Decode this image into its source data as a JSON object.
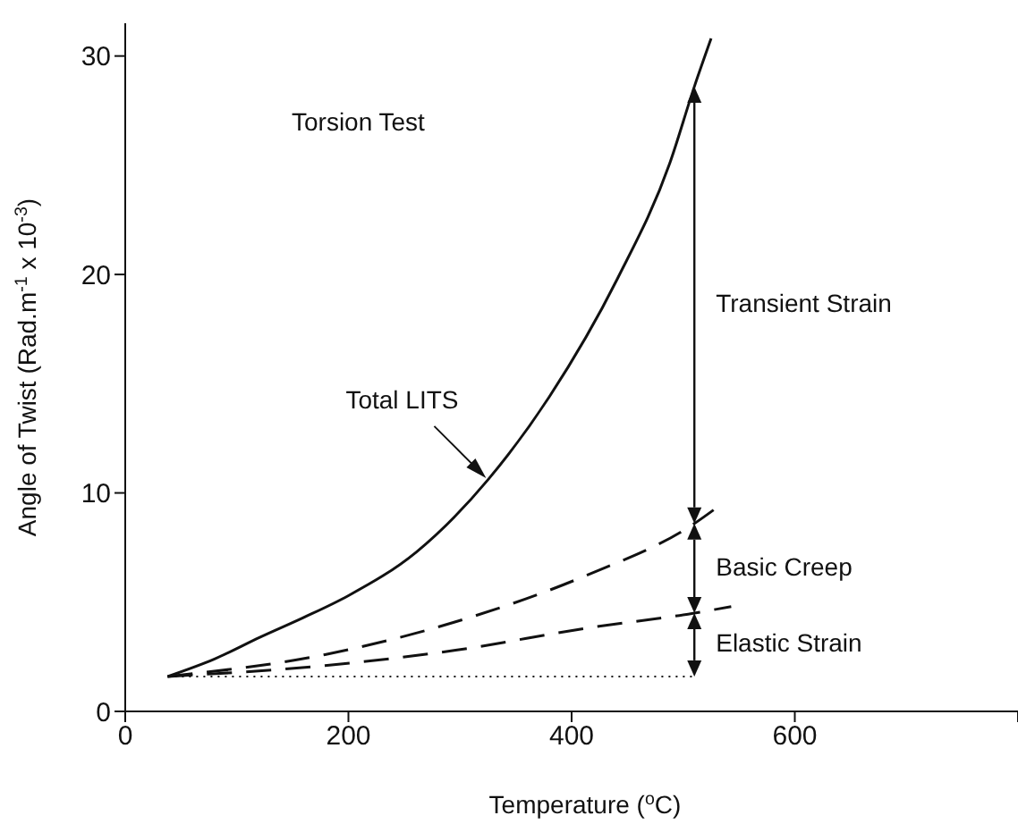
{
  "chart_data": {
    "type": "line",
    "xlabel": "Temperature ($^{o}$C)",
    "ylabel": "Angle of Twist (Rad.m$^{-1}$ x 10$^{-3}$)",
    "xlim": [
      0,
      800
    ],
    "xticks": [
      0,
      200,
      400,
      600,
      {
        "value": 800,
        "label": null
      }
    ],
    "ylim": [
      0,
      31.5
    ],
    "yticks": [
      0,
      10,
      20,
      30
    ],
    "series": [
      {
        "name": "Total LITS",
        "color": "#111111",
        "line_style": "solid",
        "x": [
          38,
          80,
          121,
          160,
          200,
          261,
          325,
          380,
          441,
          488,
          510,
          525
        ],
        "values": [
          1.6,
          2.4,
          3.4,
          4.3,
          5.3,
          7.3,
          10.6,
          14.4,
          19.8,
          25.1,
          28.6,
          30.8
        ]
      },
      {
        "color": "#111111",
        "line_style": "dashed",
        "x": [
          38,
          179,
          296,
          412,
          510,
          532
        ],
        "values": [
          1.6,
          2.6,
          4.1,
          6.2,
          8.6,
          9.4
        ]
      },
      {
        "color": "#111111",
        "line_style": "dashed",
        "x": [
          38,
          179,
          296,
          412,
          510,
          543
        ],
        "values": [
          1.6,
          2.1,
          2.8,
          3.8,
          4.5,
          4.8
        ]
      },
      {
        "color": "#111111",
        "line_style": "dotted",
        "x": [
          38,
          510
        ],
        "values": [
          1.6,
          1.6
        ]
      }
    ],
    "annotations": [
      "Torsion Test",
      "Transient Strain",
      "Basic Creep",
      "Elastic Strain"
    ]
  }
}
